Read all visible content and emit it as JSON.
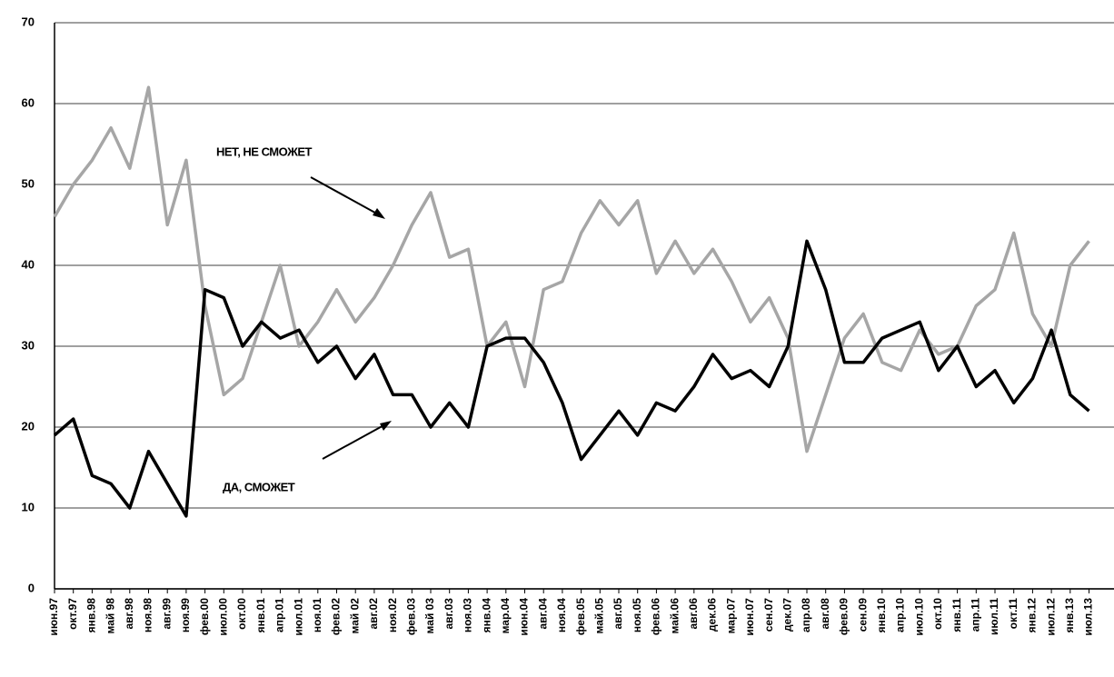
{
  "chart_data": {
    "type": "line",
    "annotations": [
      "НЕТ, НЕ СМОЖЕТ",
      "ДА, СМОЖЕТ"
    ],
    "categories": [
      "июн.97",
      "окт.97",
      "янв.98",
      "май 98",
      "авг.98",
      "ноя.98",
      "авг.99",
      "ноя.99",
      "фев.00",
      "июл.00",
      "окт.00",
      "янв.01",
      "апр.01",
      "июл.01",
      "ноя.01",
      "фев.02",
      "май 02",
      "авг.02",
      "ноя.02",
      "фев.03",
      "май 03",
      "авг.03",
      "ноя.03",
      "янв.04",
      "мар.04",
      "июн.04",
      "авг.04",
      "ноя.04",
      "фев.05",
      "май.05",
      "авг.05",
      "ноя.05",
      "фев.06",
      "май.06",
      "авг.06",
      "дек.06",
      "мар.07",
      "июн.07",
      "сен.07",
      "дек.07",
      "апр.08",
      "авг.08",
      "фев.09",
      "сен.09",
      "янв.10",
      "апр.10",
      "июл.10",
      "окт.10",
      "янв.11",
      "апр.11",
      "июл.11",
      "окт.11",
      "янв.12",
      "июл.12",
      "янв.13",
      "июл.13"
    ],
    "series": [
      {
        "name": "НЕТ, НЕ СМОЖЕТ",
        "color": "#a6a6a6",
        "values": [
          46,
          50,
          53,
          57,
          52,
          62,
          45,
          53,
          35,
          24,
          26,
          33,
          40,
          30,
          33,
          37,
          33,
          36,
          40,
          45,
          49,
          41,
          42,
          30,
          33,
          25,
          37,
          38,
          44,
          48,
          45,
          48,
          39,
          43,
          39,
          42,
          38,
          33,
          36,
          31,
          17,
          24,
          31,
          34,
          28,
          27,
          32,
          29,
          30,
          35,
          37,
          44,
          34,
          30,
          40,
          43
        ]
      },
      {
        "name": "ДА, СМОЖЕТ",
        "color": "#000000",
        "values": [
          19,
          21,
          14,
          13,
          10,
          17,
          13,
          9,
          37,
          36,
          30,
          33,
          31,
          32,
          28,
          30,
          26,
          29,
          24,
          24,
          20,
          23,
          20,
          30,
          31,
          31,
          28,
          23,
          16,
          19,
          22,
          19,
          23,
          22,
          25,
          29,
          26,
          27,
          25,
          30,
          43,
          37,
          28,
          28,
          31,
          32,
          33,
          27,
          30,
          25,
          27,
          23,
          26,
          32,
          24,
          22
        ]
      }
    ],
    "ylim": [
      0,
      70
    ],
    "yticks": [
      0,
      10,
      20,
      30,
      40,
      50,
      60,
      70
    ],
    "grid": true
  }
}
